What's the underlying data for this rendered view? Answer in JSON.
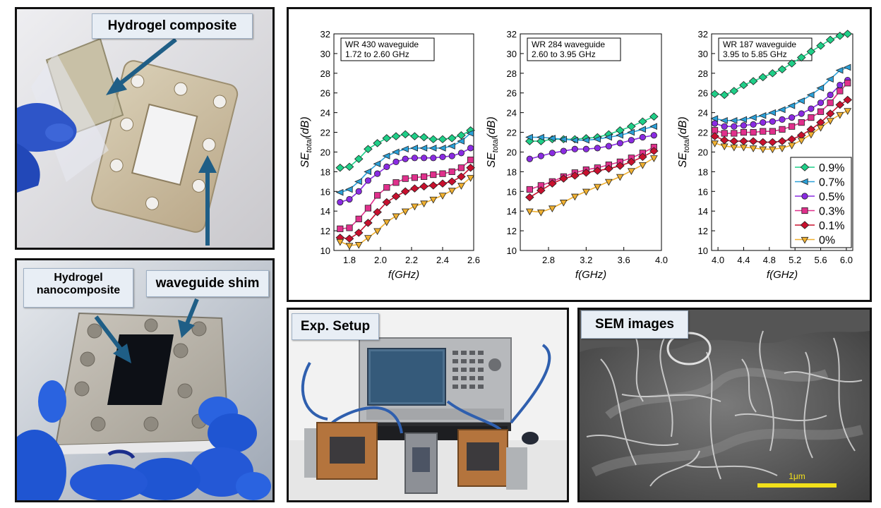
{
  "panels": {
    "hydrogel": {
      "label": "Hydrogel composite"
    },
    "shim": {
      "label_nanocomposite_line1": "Hydrogel",
      "label_nanocomposite_line2": "nanocomposite",
      "label_shim": "waveguide shim"
    },
    "setup": {
      "label": "Exp. Setup"
    },
    "sem": {
      "label": "SEM images",
      "scale_bar": "1μm"
    }
  },
  "legend": [
    "0.9%",
    "0.7%",
    "0.5%",
    "0.3%",
    "0.1%",
    "0%"
  ],
  "series_colors": [
    "#1fcf88",
    "#2aa0d8",
    "#8a2be2",
    "#e0308c",
    "#c8102e",
    "#f0b030"
  ],
  "chart_data": [
    {
      "type": "line",
      "info_line1": "WR 430 waveguide",
      "info_line2": "1.72 to 2.60 GHz",
      "ylabel_main": "SE",
      "ylabel_sub": "total",
      "ylabel_unit": "(dB)",
      "xlabel": "f(GHz)",
      "xlim": [
        1.7,
        2.6
      ],
      "ylim": [
        10,
        32
      ],
      "xticks": [
        1.8,
        2.0,
        2.2,
        2.4,
        2.6
      ],
      "xtick_labels": [
        "1.8",
        "2.0",
        "2.2",
        "2.4",
        "2.6"
      ],
      "yticks": [
        10,
        12,
        14,
        16,
        18,
        20,
        22,
        24,
        26,
        28,
        30,
        32
      ],
      "ytick_labels": [
        "10",
        "12",
        "14",
        "16",
        "18",
        "20",
        "22",
        "24",
        "26",
        "28",
        "30",
        "32"
      ],
      "x": [
        1.74,
        1.8,
        1.86,
        1.92,
        1.98,
        2.04,
        2.1,
        2.16,
        2.22,
        2.28,
        2.34,
        2.4,
        2.46,
        2.52,
        2.58
      ],
      "series": [
        {
          "values": [
            18.4,
            18.5,
            19.3,
            20.3,
            20.9,
            21.4,
            21.6,
            21.8,
            21.6,
            21.5,
            21.3,
            21.3,
            21.4,
            21.7,
            22.2
          ]
        },
        {
          "values": [
            15.9,
            16.2,
            17.0,
            18.0,
            18.8,
            19.6,
            20.0,
            20.3,
            20.4,
            20.4,
            20.4,
            20.4,
            20.6,
            21.1,
            21.9
          ]
        },
        {
          "values": [
            14.9,
            15.2,
            16.0,
            17.1,
            17.8,
            18.5,
            19.0,
            19.3,
            19.4,
            19.4,
            19.4,
            19.5,
            19.6,
            19.9,
            20.4
          ]
        },
        {
          "values": [
            12.2,
            12.3,
            13.2,
            14.3,
            15.6,
            16.4,
            16.9,
            17.3,
            17.4,
            17.5,
            17.7,
            17.8,
            18.0,
            18.4,
            19.2
          ]
        },
        {
          "values": [
            11.3,
            11.2,
            11.8,
            12.8,
            13.9,
            14.9,
            15.5,
            16.0,
            16.3,
            16.5,
            16.6,
            16.8,
            17.0,
            17.5,
            18.4
          ]
        },
        {
          "values": [
            10.9,
            10.5,
            10.6,
            11.3,
            12.0,
            12.9,
            13.5,
            14.0,
            14.5,
            14.8,
            15.2,
            15.6,
            16.1,
            16.6,
            17.4
          ]
        }
      ]
    },
    {
      "type": "line",
      "info_line1": "WR 284 waveguide",
      "info_line2": "2.60 to 3.95 GHz",
      "ylabel_main": "SE",
      "ylabel_sub": "total",
      "ylabel_unit": "(dB)",
      "xlabel": "f(GHz)",
      "xlim": [
        2.5,
        4.0
      ],
      "ylim": [
        10,
        32
      ],
      "xticks": [
        2.8,
        3.2,
        3.6,
        4.0
      ],
      "xtick_labels": [
        "2.8",
        "3.2",
        "3.6",
        "4.0"
      ],
      "yticks": [
        10,
        12,
        14,
        16,
        18,
        20,
        22,
        24,
        26,
        28,
        30,
        32
      ],
      "ytick_labels": [
        "10",
        "12",
        "14",
        "16",
        "18",
        "20",
        "22",
        "24",
        "26",
        "28",
        "30",
        "32"
      ],
      "x": [
        2.6,
        2.72,
        2.84,
        2.96,
        3.08,
        3.2,
        3.32,
        3.44,
        3.56,
        3.68,
        3.8,
        3.92
      ],
      "series": [
        {
          "values": [
            21.1,
            21.1,
            21.3,
            21.3,
            21.3,
            21.4,
            21.5,
            21.8,
            22.2,
            22.6,
            23.1,
            23.6
          ]
        },
        {
          "values": [
            21.5,
            21.5,
            21.4,
            21.3,
            21.2,
            21.2,
            21.3,
            21.5,
            21.7,
            22.0,
            22.3,
            22.6
          ]
        },
        {
          "values": [
            19.3,
            19.6,
            19.9,
            20.1,
            20.3,
            20.3,
            20.4,
            20.6,
            20.9,
            21.2,
            21.5,
            21.7
          ]
        },
        {
          "values": [
            16.2,
            16.6,
            17.0,
            17.5,
            17.9,
            18.2,
            18.4,
            18.7,
            19.0,
            19.4,
            19.9,
            20.5
          ]
        },
        {
          "values": [
            15.4,
            16.1,
            16.8,
            17.3,
            17.6,
            17.9,
            18.1,
            18.3,
            18.6,
            19.0,
            19.5,
            20.1
          ]
        },
        {
          "values": [
            14.0,
            13.9,
            14.3,
            14.9,
            15.5,
            16.0,
            16.5,
            17.0,
            17.5,
            18.1,
            18.7,
            19.4
          ]
        }
      ]
    },
    {
      "type": "line",
      "info_line1": "WR 187 waveguide",
      "info_line2": "3.95 to 5.85 GHz",
      "ylabel_main": "SE",
      "ylabel_sub": "total",
      "ylabel_unit": "(dB)",
      "xlabel": "f(GHz)",
      "xlim": [
        3.9,
        6.1
      ],
      "ylim": [
        10,
        32
      ],
      "xticks": [
        4.0,
        4.4,
        4.8,
        5.2,
        5.6,
        6.0
      ],
      "xtick_labels": [
        "4.0",
        "4.4",
        "4.8",
        "5.2",
        "5.6",
        "6.0"
      ],
      "yticks": [
        10,
        12,
        14,
        16,
        18,
        20,
        22,
        24,
        26,
        28,
        30,
        32
      ],
      "ytick_labels": [
        "10",
        "12",
        "14",
        "16",
        "18",
        "20",
        "22",
        "24",
        "26",
        "28",
        "30",
        "32"
      ],
      "legend_position": "bottom-right",
      "x": [
        3.95,
        4.1,
        4.25,
        4.4,
        4.55,
        4.7,
        4.85,
        5.0,
        5.15,
        5.3,
        5.45,
        5.6,
        5.75,
        5.9,
        6.02
      ],
      "series": [
        {
          "values": [
            25.9,
            25.8,
            26.2,
            26.8,
            27.2,
            27.6,
            28.0,
            28.4,
            29.0,
            29.6,
            30.2,
            30.8,
            31.4,
            31.8,
            32.0
          ]
        },
        {
          "values": [
            23.4,
            23.2,
            23.2,
            23.3,
            23.5,
            23.7,
            24.0,
            24.3,
            24.7,
            25.2,
            25.8,
            26.5,
            27.4,
            28.3,
            28.6
          ]
        },
        {
          "values": [
            22.9,
            22.6,
            22.6,
            22.7,
            22.8,
            23.0,
            23.1,
            23.3,
            23.5,
            23.9,
            24.4,
            25.0,
            25.8,
            26.8,
            27.3
          ]
        },
        {
          "values": [
            22.2,
            21.9,
            21.9,
            22.0,
            22.0,
            22.1,
            22.1,
            22.3,
            22.6,
            23.0,
            23.5,
            24.1,
            25.0,
            26.2,
            27.0
          ]
        },
        {
          "values": [
            21.6,
            21.2,
            21.1,
            21.1,
            21.1,
            21.0,
            21.0,
            21.1,
            21.3,
            21.7,
            22.3,
            23.0,
            23.9,
            24.8,
            25.3
          ]
        },
        {
          "values": [
            20.9,
            20.6,
            20.5,
            20.5,
            20.4,
            20.3,
            20.3,
            20.4,
            20.7,
            21.2,
            21.8,
            22.5,
            23.2,
            23.8,
            24.2
          ]
        }
      ]
    }
  ]
}
